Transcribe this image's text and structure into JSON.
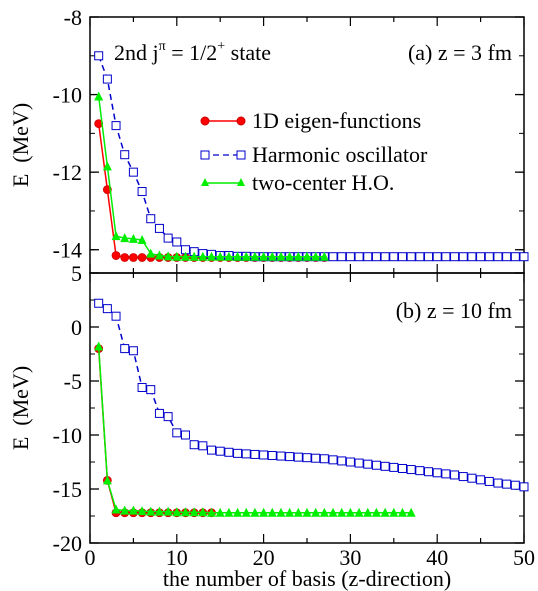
{
  "chart_data": [
    {
      "type": "line",
      "panel_label": "(a) z = 3 fm",
      "state_label": "2nd j",
      "state_sup": "π",
      "state_eq": " = 1/2",
      "state_sup2": "+",
      "state_tail": " state",
      "ylabel": "E  (MeV)",
      "ylim": [
        -14.6,
        -8.0
      ],
      "xlim": [
        0,
        50
      ],
      "yticks": [
        -8,
        -10,
        -12,
        -14
      ],
      "legend_position": "middle-right",
      "series": [
        {
          "name": "1D eigen-functions",
          "color": "#ff0000",
          "marker": "circle",
          "dash": "",
          "x": [
            1,
            2,
            3,
            4,
            5,
            6,
            7,
            8,
            9,
            10,
            11,
            12,
            13,
            14,
            15,
            16,
            17,
            18,
            19,
            20,
            21,
            22,
            23,
            24,
            25,
            26,
            27
          ],
          "y": [
            -10.75,
            -12.45,
            -14.15,
            -14.2,
            -14.2,
            -14.2,
            -14.2,
            -14.2,
            -14.2,
            -14.2,
            -14.2,
            -14.2,
            -14.2,
            -14.2,
            -14.2,
            -14.2,
            -14.2,
            -14.2,
            -14.2,
            -14.2,
            -14.2,
            -14.2,
            -14.2,
            -14.2,
            -14.2,
            -14.2,
            -14.2
          ]
        },
        {
          "name": "Harmonic oscillator",
          "color": "#0000cc",
          "marker": "square",
          "dash": "6,4",
          "x": [
            1,
            2,
            3,
            4,
            5,
            6,
            7,
            8,
            9,
            10,
            11,
            12,
            13,
            14,
            15,
            16,
            17,
            18,
            19,
            20,
            21,
            22,
            23,
            24,
            25,
            26,
            27,
            28,
            29,
            30,
            31,
            32,
            33,
            34,
            35,
            36,
            37,
            38,
            39,
            40,
            41,
            42,
            43,
            44,
            45,
            46,
            47,
            48,
            49,
            50
          ],
          "y": [
            -9.0,
            -9.6,
            -10.8,
            -11.55,
            -12.0,
            -12.5,
            -13.2,
            -13.45,
            -13.7,
            -13.8,
            -14.0,
            -14.05,
            -14.1,
            -14.12,
            -14.15,
            -14.15,
            -14.17,
            -14.17,
            -14.18,
            -14.18,
            -14.18,
            -14.18,
            -14.18,
            -14.18,
            -14.18,
            -14.18,
            -14.18,
            -14.18,
            -14.18,
            -14.18,
            -14.18,
            -14.18,
            -14.18,
            -14.18,
            -14.18,
            -14.18,
            -14.18,
            -14.18,
            -14.18,
            -14.18,
            -14.18,
            -14.18,
            -14.18,
            -14.18,
            -14.18,
            -14.18,
            -14.18,
            -14.18,
            -14.18,
            -14.18
          ]
        },
        {
          "name": "two-center H.O.",
          "color": "#00ee00",
          "marker": "triangle",
          "dash": "",
          "x": [
            1,
            2,
            3,
            4,
            5,
            6,
            7,
            8,
            9,
            10,
            11,
            12,
            13,
            14,
            15,
            16,
            17,
            18,
            19,
            20,
            21,
            22,
            23,
            24,
            25,
            26,
            27
          ],
          "y": [
            -10.05,
            -11.85,
            -13.65,
            -13.7,
            -13.72,
            -13.75,
            -14.1,
            -14.15,
            -14.17,
            -14.18,
            -14.18,
            -14.18,
            -14.18,
            -14.18,
            -14.18,
            -14.18,
            -14.18,
            -14.18,
            -14.18,
            -14.18,
            -14.18,
            -14.18,
            -14.18,
            -14.18,
            -14.18,
            -14.18,
            -14.18
          ]
        }
      ]
    },
    {
      "type": "line",
      "panel_label": "(b) z = 10 fm",
      "ylabel": "E  (MeV)",
      "xlabel": "the number of basis (z-direction)",
      "ylim": [
        -20,
        5
      ],
      "xlim": [
        0,
        50
      ],
      "yticks": [
        5,
        0,
        -5,
        -10,
        -15,
        -20
      ],
      "xticks": [
        0,
        10,
        20,
        30,
        40,
        50
      ],
      "series": [
        {
          "name": "1D eigen-functions",
          "color": "#ff0000",
          "marker": "circle",
          "dash": "",
          "x": [
            1,
            2,
            3,
            4,
            5,
            6,
            7,
            8,
            9,
            10,
            11,
            12,
            13,
            14
          ],
          "y": [
            -2.0,
            -14.2,
            -17.2,
            -17.2,
            -17.2,
            -17.2,
            -17.2,
            -17.2,
            -17.2,
            -17.2,
            -17.2,
            -17.2,
            -17.2,
            -17.2
          ]
        },
        {
          "name": "Harmonic oscillator",
          "color": "#0000cc",
          "marker": "square",
          "dash": "6,4",
          "x": [
            1,
            2,
            3,
            4,
            5,
            6,
            7,
            8,
            9,
            10,
            11,
            12,
            13,
            14,
            15,
            16,
            17,
            18,
            19,
            20,
            21,
            22,
            23,
            24,
            25,
            26,
            27,
            28,
            29,
            30,
            31,
            32,
            33,
            34,
            35,
            36,
            37,
            38,
            39,
            40,
            41,
            42,
            43,
            44,
            45,
            46,
            47,
            48,
            49,
            50
          ],
          "y": [
            2.2,
            1.7,
            1.0,
            -2.0,
            -2.2,
            -5.6,
            -5.8,
            -8.0,
            -8.3,
            -9.8,
            -10.0,
            -10.9,
            -11.0,
            -11.4,
            -11.5,
            -11.6,
            -11.7,
            -11.75,
            -11.8,
            -11.85,
            -11.9,
            -11.95,
            -12.0,
            -12.05,
            -12.1,
            -12.15,
            -12.2,
            -12.3,
            -12.4,
            -12.5,
            -12.6,
            -12.7,
            -12.8,
            -12.9,
            -13.0,
            -13.1,
            -13.2,
            -13.3,
            -13.4,
            -13.5,
            -13.6,
            -13.7,
            -13.85,
            -14.0,
            -14.15,
            -14.3,
            -14.45,
            -14.55,
            -14.65,
            -14.8
          ]
        },
        {
          "name": "two-center H.O.",
          "color": "#00ee00",
          "marker": "triangle",
          "dash": "",
          "x": [
            1,
            2,
            3,
            4,
            5,
            6,
            7,
            8,
            9,
            10,
            11,
            12,
            13,
            14,
            15,
            16,
            17,
            18,
            19,
            20,
            21,
            22,
            23,
            24,
            25,
            26,
            27,
            28,
            29,
            30,
            31,
            32,
            33,
            34,
            35,
            36,
            37
          ],
          "y": [
            -1.8,
            -14.2,
            -16.9,
            -17.0,
            -17.0,
            -17.05,
            -17.1,
            -17.1,
            -17.1,
            -17.15,
            -17.15,
            -17.15,
            -17.15,
            -17.2,
            -17.2,
            -17.2,
            -17.2,
            -17.2,
            -17.2,
            -17.2,
            -17.2,
            -17.2,
            -17.2,
            -17.2,
            -17.2,
            -17.2,
            -17.2,
            -17.2,
            -17.2,
            -17.2,
            -17.2,
            -17.2,
            -17.2,
            -17.2,
            -17.2,
            -17.2,
            -17.2
          ]
        }
      ]
    }
  ]
}
